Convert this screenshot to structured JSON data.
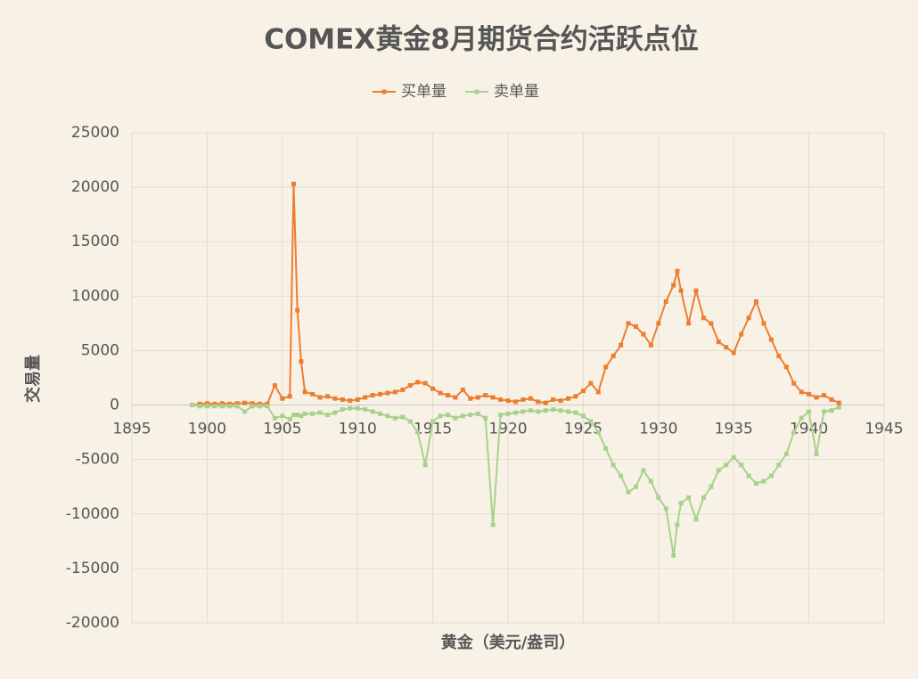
{
  "chart_data": {
    "type": "line",
    "title": "COMEX黄金8月期货合约活跃点位",
    "x_label": "黄金（美元/盎司）",
    "y_label": "交易量",
    "xlim": [
      1895,
      1945
    ],
    "xticks": [
      1895,
      1900,
      1905,
      1910,
      1915,
      1920,
      1925,
      1930,
      1935,
      1940,
      1945
    ],
    "ylim": [
      -20000,
      25000
    ],
    "yticks": [
      -20000,
      -15000,
      -10000,
      -5000,
      0,
      5000,
      10000,
      15000,
      20000,
      25000
    ],
    "grid": true,
    "legend": "top",
    "x": [
      1899,
      1899.5,
      1900,
      1900.5,
      1901,
      1901.5,
      1902,
      1902.5,
      1903,
      1903.5,
      1904,
      1904.5,
      1905,
      1905.5,
      1905.75,
      1906,
      1906.25,
      1906.5,
      1907,
      1907.5,
      1908,
      1908.5,
      1909,
      1909.5,
      1910,
      1910.5,
      1911,
      1911.5,
      1912,
      1912.5,
      1913,
      1913.5,
      1914,
      1914.5,
      1915,
      1915.5,
      1916,
      1916.5,
      1917,
      1917.5,
      1918,
      1918.5,
      1919,
      1919.5,
      1920,
      1920.5,
      1921,
      1921.5,
      1922,
      1922.5,
      1923,
      1923.5,
      1924,
      1924.5,
      1925,
      1925.5,
      1926,
      1926.5,
      1927,
      1927.5,
      1928,
      1928.5,
      1929,
      1929.5,
      1930,
      1930.5,
      1931,
      1931.25,
      1931.5,
      1932,
      1932.5,
      1933,
      1933.5,
      1934,
      1934.5,
      1935,
      1935.5,
      1936,
      1936.5,
      1937,
      1937.5,
      1938,
      1938.5,
      1939,
      1939.5,
      1940,
      1940.5,
      1941,
      1941.5,
      1942
    ],
    "series": [
      {
        "name": "买单量",
        "color": "#ed7d31",
        "values": [
          0,
          100,
          150,
          100,
          150,
          100,
          150,
          200,
          150,
          100,
          100,
          1800,
          600,
          800,
          20300,
          8700,
          4000,
          1200,
          1000,
          700,
          800,
          600,
          500,
          400,
          500,
          700,
          900,
          1000,
          1100,
          1200,
          1400,
          1800,
          2100,
          2000,
          1500,
          1100,
          900,
          700,
          1400,
          600,
          700,
          900,
          700,
          500,
          400,
          300,
          500,
          600,
          300,
          200,
          500,
          400,
          600,
          800,
          1300,
          2000,
          1200,
          3500,
          4500,
          5500,
          7500,
          7200,
          6500,
          5500,
          7500,
          9500,
          11000,
          12300,
          10500,
          7500,
          10500,
          8000,
          7500,
          5800,
          5300,
          4800,
          6500,
          8000,
          9500,
          7500,
          6000,
          4500,
          3500,
          2000,
          1200,
          1000,
          700,
          900,
          500,
          200
        ]
      },
      {
        "name": "卖单量",
        "color": "#a9d18e",
        "values": [
          0,
          -100,
          -100,
          -100,
          -100,
          -100,
          -100,
          -600,
          -100,
          -100,
          -100,
          -1200,
          -1000,
          -1300,
          -900,
          -900,
          -1000,
          -800,
          -800,
          -700,
          -900,
          -700,
          -400,
          -300,
          -300,
          -400,
          -600,
          -800,
          -1000,
          -1200,
          -1100,
          -1500,
          -2500,
          -5500,
          -1500,
          -1000,
          -900,
          -1200,
          -1000,
          -900,
          -800,
          -1200,
          -11000,
          -900,
          -800,
          -700,
          -600,
          -500,
          -600,
          -500,
          -400,
          -500,
          -600,
          -700,
          -1000,
          -1500,
          -2500,
          -4000,
          -5500,
          -6500,
          -8000,
          -7500,
          -6000,
          -7000,
          -8500,
          -9500,
          -13800,
          -11000,
          -9000,
          -8500,
          -10500,
          -8500,
          -7500,
          -6000,
          -5500,
          -4800,
          -5500,
          -6500,
          -7200,
          -7000,
          -6500,
          -5500,
          -4500,
          -2500,
          -1200,
          -600,
          -4500,
          -600,
          -500,
          -200
        ]
      }
    ]
  }
}
